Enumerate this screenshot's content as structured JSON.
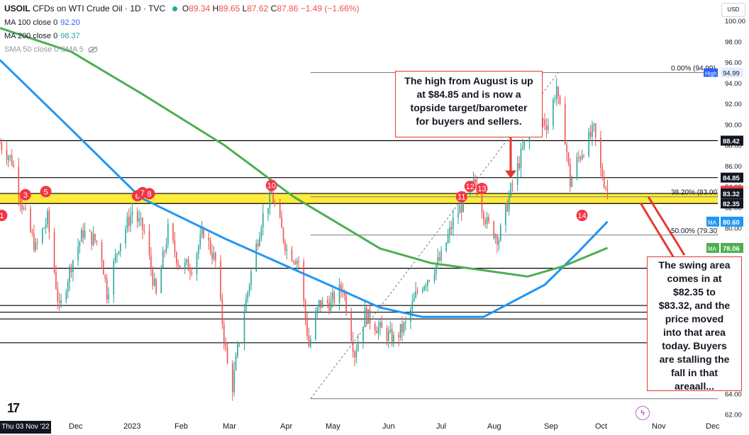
{
  "header": {
    "symbol": "USOIL",
    "title": "CFDs on WTI Crude Oil · 1D · TVC",
    "ohlc": {
      "o_label": "O",
      "o": "89.34",
      "h_label": "H",
      "h": "89.65",
      "l_label": "L",
      "l": "87.62",
      "c_label": "C",
      "c": "87.86",
      "change": "−1.49 (−1.66%)"
    },
    "ma100": {
      "label": "MA 100 close 0",
      "value": "92.20"
    },
    "ma200": {
      "label": "MA 200 close 0",
      "value": "98.37"
    },
    "sma50": {
      "label": "SMA 50 close 0 SMA 5"
    }
  },
  "currency": "USD",
  "x_first_label": "Thu 03 Nov '22",
  "x_labels": [
    "Dec",
    "2023",
    "Feb",
    "Mar",
    "Apr",
    "May",
    "Jun",
    "Jul",
    "Aug",
    "Sep",
    "Oct",
    "Nov",
    "Dec"
  ],
  "callouts": {
    "top": [
      "The high from August is up",
      "at $84.85 and is now a",
      "topside target/barometer",
      "for buyers and sellers."
    ],
    "right": [
      "The swing area",
      "comes in at",
      "$82.35 to",
      "$83.32, and the",
      "price moved",
      "into that area",
      "today. Buyers",
      "are stalling the",
      "fall in that",
      "areaall..."
    ]
  },
  "chart_data": {
    "type": "candlestick",
    "title": "USOIL · CFDs on WTI Crude Oil · 1D · TVC",
    "y_ticks": [
      100,
      98,
      96,
      94,
      92,
      90,
      88,
      86,
      84,
      82,
      80,
      78,
      76,
      74,
      72,
      70,
      68,
      66,
      64,
      62
    ],
    "y_tick_labels": [
      "100.00",
      "98.00",
      "96.00",
      "94.00",
      "92.00",
      "90.00",
      "88.00",
      "86.00",
      "84.00",
      "82.00",
      "80.00",
      "78.00",
      "76.00",
      "74.00",
      "72.00",
      "70.00",
      "68.00",
      "66.00",
      "64.00",
      "62.00"
    ],
    "ylim": [
      61.5,
      102
    ],
    "x_range": [
      "2022-11-03",
      "2023-12-31"
    ],
    "grid": false,
    "legend": "top-left",
    "swing_zone": {
      "low": 82.35,
      "high": 83.32,
      "color": "#ffeb3b"
    },
    "horizontal_levels": [
      88.42,
      84.85,
      83.32,
      82.35,
      76.1,
      72.5,
      71.85,
      71.2,
      68.9
    ],
    "fibonacci": [
      {
        "label": "0.00% (94.99)",
        "value": 94.99
      },
      {
        "label": "38.20% (83.00)",
        "value": 83.0
      },
      {
        "label": "50.00% (79.30)",
        "value": 79.3
      }
    ],
    "fib_low": 63.5,
    "price_labels": [
      {
        "text": "High",
        "value": "94.99",
        "kind": "high"
      },
      {
        "text": "",
        "value": "88.42",
        "kind": "black"
      },
      {
        "text": "",
        "value": "84.85",
        "kind": "black"
      },
      {
        "text": "",
        "value": "83.58",
        "kind": "red"
      },
      {
        "text": "",
        "value": "83.32",
        "kind": "black"
      },
      {
        "text": "",
        "value": "82.35",
        "kind": "black"
      },
      {
        "text": "MA",
        "value": "80.60",
        "kind": "blue"
      },
      {
        "text": "MA",
        "value": "78.06",
        "kind": "green"
      }
    ],
    "markers": [
      {
        "label": "1",
        "date": "2022-11-04",
        "y": 81.2
      },
      {
        "label": "3",
        "date": "2022-11-18",
        "y": 83.2
      },
      {
        "label": "5",
        "date": "2022-11-30",
        "y": 83.5
      },
      {
        "label": "6",
        "date": "2023-01-23",
        "y": 83.1
      },
      {
        "label": "7",
        "date": "2023-01-26",
        "y": 83.4
      },
      {
        "label": "8",
        "date": "2023-01-30",
        "y": 83.3
      },
      {
        "label": "10",
        "date": "2023-04-12",
        "y": 84.1
      },
      {
        "label": "11",
        "date": "2023-08-02",
        "y": 83.0
      },
      {
        "label": "12",
        "date": "2023-08-07",
        "y": 84.0
      },
      {
        "label": "13",
        "date": "2023-08-14",
        "y": 83.8
      },
      {
        "label": "14",
        "date": "2023-10-12",
        "y": 81.2
      }
    ],
    "series": [
      {
        "name": "MA 100",
        "color": "#2196f3",
        "points": [
          [
            "2022-11-03",
            96.2
          ],
          [
            "2022-12-15",
            89.5
          ],
          [
            "2023-01-25",
            82.9
          ],
          [
            "2023-03-15",
            79.0
          ],
          [
            "2023-04-25",
            76.0
          ],
          [
            "2023-06-15",
            72.3
          ],
          [
            "2023-07-10",
            71.4
          ],
          [
            "2023-08-15",
            71.4
          ],
          [
            "2023-09-20",
            74.5
          ],
          [
            "2023-10-10",
            77.7
          ],
          [
            "2023-10-27",
            80.6
          ]
        ]
      },
      {
        "name": "MA 200",
        "color": "#4caf50",
        "points": [
          [
            "2022-11-03",
            99.3
          ],
          [
            "2022-12-15",
            97.0
          ],
          [
            "2023-01-25",
            93.0
          ],
          [
            "2023-03-15",
            88.0
          ],
          [
            "2023-04-25",
            83.0
          ],
          [
            "2023-06-15",
            78.0
          ],
          [
            "2023-07-15",
            76.6
          ],
          [
            "2023-08-15",
            75.9
          ],
          [
            "2023-09-10",
            75.3
          ],
          [
            "2023-10-01",
            76.3
          ],
          [
            "2023-10-27",
            78.06
          ]
        ]
      }
    ],
    "close_path": [
      [
        "2022-11-03",
        88.2
      ],
      [
        "2022-11-10",
        86.5
      ],
      [
        "2022-11-17",
        81.6
      ],
      [
        "2022-11-24",
        78.0
      ],
      [
        "2022-12-01",
        80.9
      ],
      [
        "2022-12-08",
        72.0
      ],
      [
        "2022-12-15",
        76.5
      ],
      [
        "2022-12-22",
        79.6
      ],
      [
        "2023-01-01",
        78.4
      ],
      [
        "2023-01-05",
        73.7
      ],
      [
        "2023-01-12",
        78.4
      ],
      [
        "2023-01-20",
        81.6
      ],
      [
        "2023-01-27",
        79.6
      ],
      [
        "2023-02-03",
        73.4
      ],
      [
        "2023-02-10",
        79.7
      ],
      [
        "2023-02-17",
        76.3
      ],
      [
        "2023-02-24",
        76.3
      ],
      [
        "2023-03-03",
        79.7
      ],
      [
        "2023-03-10",
        76.7
      ],
      [
        "2023-03-17",
        66.7
      ],
      [
        "2023-03-20",
        64.7
      ],
      [
        "2023-03-24",
        69.3
      ],
      [
        "2023-03-31",
        75.7
      ],
      [
        "2023-04-06",
        80.7
      ],
      [
        "2023-04-12",
        83.3
      ],
      [
        "2023-04-21",
        77.9
      ],
      [
        "2023-04-28",
        76.8
      ],
      [
        "2023-05-04",
        68.6
      ],
      [
        "2023-05-10",
        72.6
      ],
      [
        "2023-05-17",
        72.8
      ],
      [
        "2023-05-24",
        74.3
      ],
      [
        "2023-05-31",
        67.9
      ],
      [
        "2023-06-06",
        71.7
      ],
      [
        "2023-06-14",
        70.3
      ],
      [
        "2023-06-23",
        69.2
      ],
      [
        "2023-06-30",
        70.6
      ],
      [
        "2023-07-07",
        73.9
      ],
      [
        "2023-07-14",
        75.4
      ],
      [
        "2023-07-21",
        77.1
      ],
      [
        "2023-07-28",
        80.6
      ],
      [
        "2023-08-04",
        82.8
      ],
      [
        "2023-08-10",
        84.4
      ],
      [
        "2023-08-17",
        80.4
      ],
      [
        "2023-08-24",
        79.0
      ],
      [
        "2023-08-31",
        83.6
      ],
      [
        "2023-09-07",
        87.5
      ],
      [
        "2023-09-15",
        90.8
      ],
      [
        "2023-09-22",
        90.0
      ],
      [
        "2023-09-27",
        93.7
      ],
      [
        "2023-09-28",
        92.0
      ],
      [
        "2023-10-02",
        88.8
      ],
      [
        "2023-10-05",
        84.3
      ],
      [
        "2023-10-09",
        86.4
      ],
      [
        "2023-10-13",
        87.7
      ],
      [
        "2023-10-19",
        89.4
      ],
      [
        "2023-10-23",
        85.5
      ],
      [
        "2023-10-27",
        83.6
      ]
    ]
  }
}
